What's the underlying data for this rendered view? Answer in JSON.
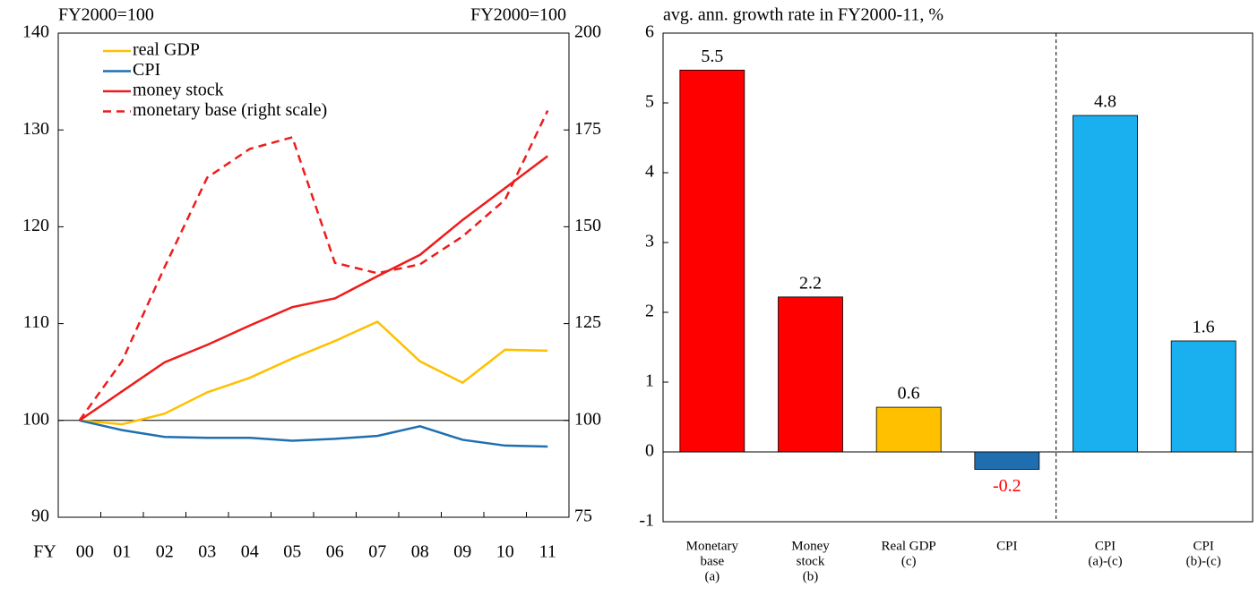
{
  "chart_data": [
    {
      "type": "line",
      "y_unit": "FY2000=100",
      "y2_unit": "FY2000=100",
      "x_label": "FY",
      "categories": [
        "00",
        "01",
        "02",
        "03",
        "04",
        "05",
        "06",
        "07",
        "08",
        "09",
        "10",
        "11"
      ],
      "ylim": [
        90,
        140
      ],
      "yticks": [
        90,
        100,
        110,
        120,
        130,
        140
      ],
      "y2lim": [
        75,
        200
      ],
      "y2ticks": [
        75,
        100,
        125,
        150,
        175,
        200
      ],
      "reference_line": 100,
      "series": [
        {
          "name": "real GDP",
          "color": "#ffc000",
          "dash": false,
          "values": [
            100,
            99.6,
            100.7,
            102.9,
            104.4,
            106.4,
            108.2,
            110.2,
            106.1,
            103.9,
            107.3,
            107.2
          ]
        },
        {
          "name": "CPI",
          "color": "#1f6fb0",
          "dash": false,
          "values": [
            100,
            99.0,
            98.3,
            98.2,
            98.2,
            97.9,
            98.1,
            98.4,
            99.4,
            98.0,
            97.4,
            97.3
          ]
        },
        {
          "name": "money stock",
          "color": "#ee1c1c",
          "dash": false,
          "values": [
            100,
            103.0,
            106.0,
            107.8,
            109.8,
            111.7,
            112.6,
            114.9,
            117.1,
            120.7,
            124.0,
            127.3
          ]
        },
        {
          "name": "monetary base (right scale)",
          "color": "#ee1c1c",
          "dash": true,
          "axis": "y2",
          "values": [
            100,
            115.3,
            139.6,
            162.7,
            170.1,
            173.1,
            140.7,
            138.0,
            140.3,
            147.5,
            157.0,
            180.0
          ]
        }
      ]
    },
    {
      "type": "bar",
      "title": "avg. ann. growth rate in FY2000-11, %",
      "categories": [
        [
          "Monetary",
          "base",
          "(a)"
        ],
        [
          "Money",
          "stock",
          "(b)"
        ],
        [
          "Real GDP",
          "(c)"
        ],
        [
          "CPI"
        ],
        [
          "CPI",
          "(a)-(c)"
        ],
        [
          "CPI",
          "(b)-(c)"
        ]
      ],
      "values": [
        5.47,
        2.22,
        0.64,
        -0.25,
        4.82,
        1.59
      ],
      "value_labels": [
        "5.5",
        "2.2",
        "0.6",
        "-0.2",
        "4.8",
        "1.6"
      ],
      "colors": [
        "#ff0000",
        "#ff0000",
        "#ffc000",
        "#1f6fb0",
        "#1ab0f0",
        "#1ab0f0"
      ],
      "negative_label_color": "#ff0000",
      "ylim": [
        -1,
        6
      ],
      "yticks": [
        -1,
        0,
        1,
        2,
        3,
        4,
        5,
        6
      ]
    }
  ]
}
